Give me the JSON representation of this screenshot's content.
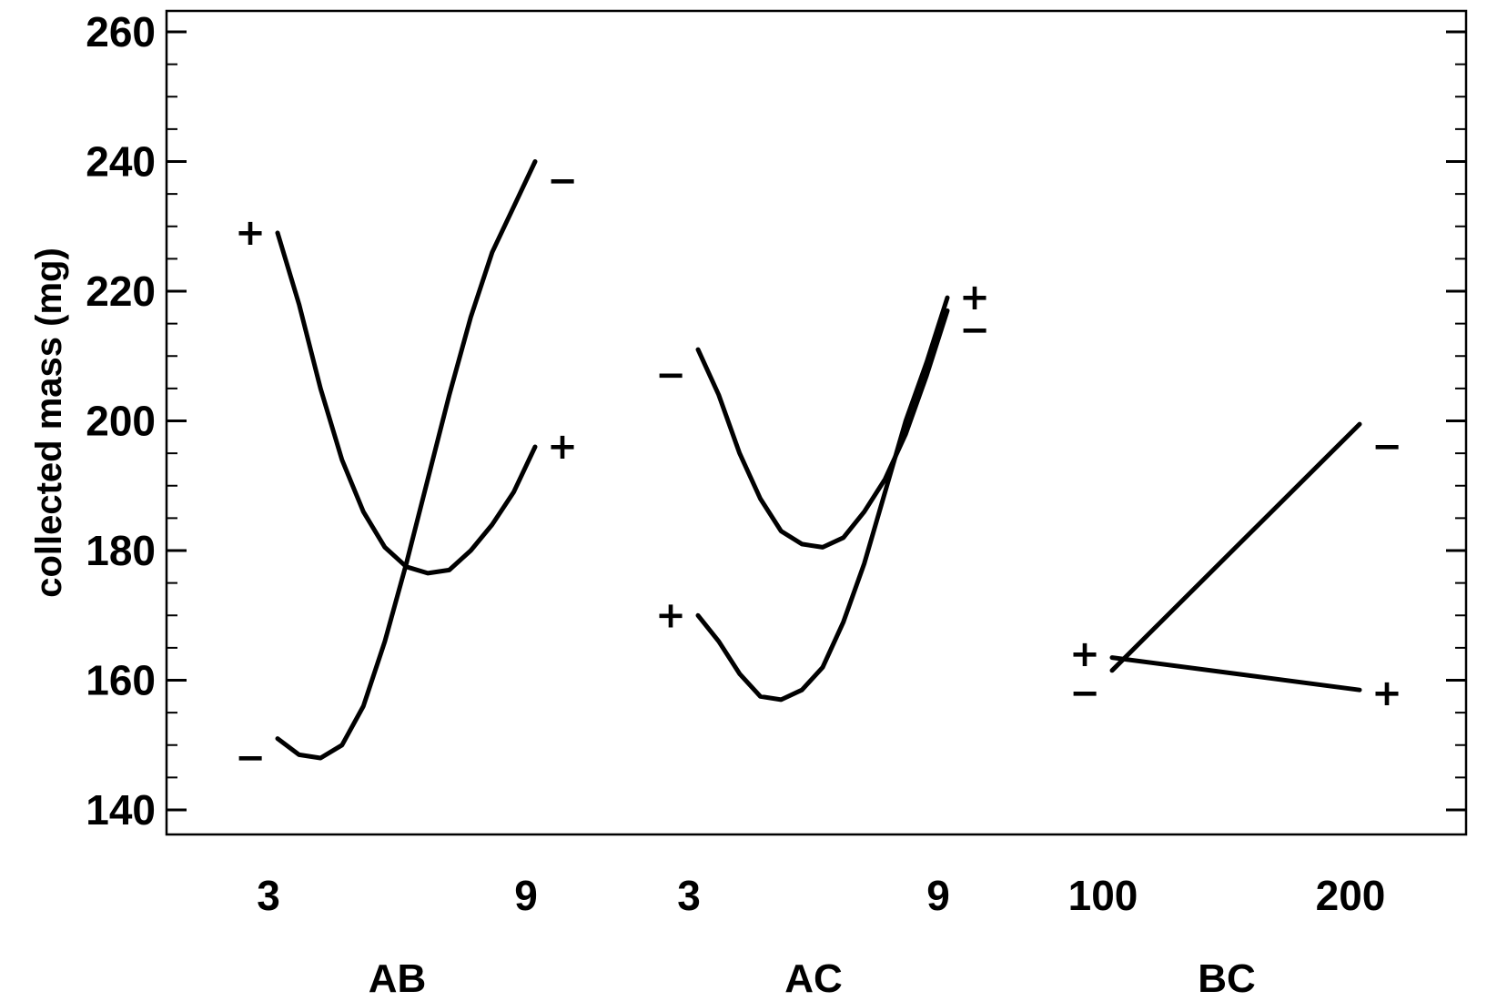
{
  "chart_data": {
    "type": "line",
    "ylabel": "collected mass (mg)",
    "ylim": [
      140,
      260
    ],
    "yticks": [
      140,
      160,
      180,
      200,
      220,
      240,
      260
    ],
    "panels": [
      {
        "label": "AB",
        "x_ticks": [
          "3",
          "9"
        ],
        "series": [
          {
            "name": "+",
            "points": [
              [
                3,
                229
              ],
              [
                3.5,
                218
              ],
              [
                4,
                205
              ],
              [
                4.5,
                194
              ],
              [
                5,
                186
              ],
              [
                5.5,
                180.5
              ],
              [
                6,
                177.5
              ],
              [
                6.5,
                176.5
              ],
              [
                7,
                177
              ],
              [
                7.5,
                180
              ],
              [
                8,
                184
              ],
              [
                8.5,
                189
              ],
              [
                9,
                196
              ]
            ]
          },
          {
            "name": "−",
            "points": [
              [
                3,
                151
              ],
              [
                3.5,
                148.5
              ],
              [
                4,
                148
              ],
              [
                4.5,
                150
              ],
              [
                5,
                156
              ],
              [
                5.5,
                166
              ],
              [
                6,
                178
              ],
              [
                6.5,
                191
              ],
              [
                7,
                204
              ],
              [
                7.5,
                216
              ],
              [
                8,
                226
              ],
              [
                8.5,
                233
              ],
              [
                9,
                240
              ]
            ]
          }
        ]
      },
      {
        "label": "AC",
        "x_ticks": [
          "3",
          "9"
        ],
        "series": [
          {
            "name": "+",
            "points": [
              [
                3,
                170
              ],
              [
                3.5,
                166
              ],
              [
                4,
                161
              ],
              [
                4.5,
                157.5
              ],
              [
                5,
                157
              ],
              [
                5.5,
                158.5
              ],
              [
                6,
                162
              ],
              [
                6.5,
                169
              ],
              [
                7,
                178
              ],
              [
                7.5,
                189
              ],
              [
                8,
                200
              ],
              [
                8.5,
                209
              ],
              [
                9,
                219
              ]
            ]
          },
          {
            "name": "−",
            "points": [
              [
                3,
                211
              ],
              [
                3.5,
                204
              ],
              [
                4,
                195
              ],
              [
                4.5,
                188
              ],
              [
                5,
                183
              ],
              [
                5.5,
                181
              ],
              [
                6,
                180.5
              ],
              [
                6.5,
                182
              ],
              [
                7,
                186
              ],
              [
                7.5,
                191
              ],
              [
                8,
                198
              ],
              [
                8.5,
                207
              ],
              [
                9,
                217
              ]
            ]
          }
        ]
      },
      {
        "label": "BC",
        "x_ticks": [
          "100",
          "200"
        ],
        "series": [
          {
            "name": "+",
            "points": [
              [
                100,
                163.5
              ],
              [
                150,
                161
              ],
              [
                200,
                158.5
              ]
            ]
          },
          {
            "name": "−",
            "points": [
              [
                100,
                161.5
              ],
              [
                150,
                180.5
              ],
              [
                200,
                199.5
              ]
            ]
          }
        ]
      }
    ],
    "markers": [
      {
        "panel": "AB",
        "text": "+",
        "y": 229,
        "side": "left"
      },
      {
        "panel": "AB",
        "text": "−",
        "y": 148,
        "side": "left"
      },
      {
        "panel": "AB",
        "text": "−",
        "y": 237,
        "side": "right"
      },
      {
        "panel": "AB",
        "text": "+",
        "y": 196,
        "side": "right"
      },
      {
        "panel": "AC",
        "text": "−",
        "y": 207,
        "side": "left"
      },
      {
        "panel": "AC",
        "text": "+",
        "y": 170,
        "side": "left"
      },
      {
        "panel": "AC",
        "text": "+",
        "y": 219,
        "side": "right"
      },
      {
        "panel": "AC",
        "text": "−",
        "y": 214,
        "side": "right"
      },
      {
        "panel": "BC",
        "text": "+",
        "y": 164,
        "side": "left"
      },
      {
        "panel": "BC",
        "text": "−",
        "y": 158,
        "side": "left"
      },
      {
        "panel": "BC",
        "text": "−",
        "y": 196,
        "side": "right"
      },
      {
        "panel": "BC",
        "text": "+",
        "y": 158,
        "side": "right"
      }
    ],
    "grid": false,
    "legend": "none"
  }
}
